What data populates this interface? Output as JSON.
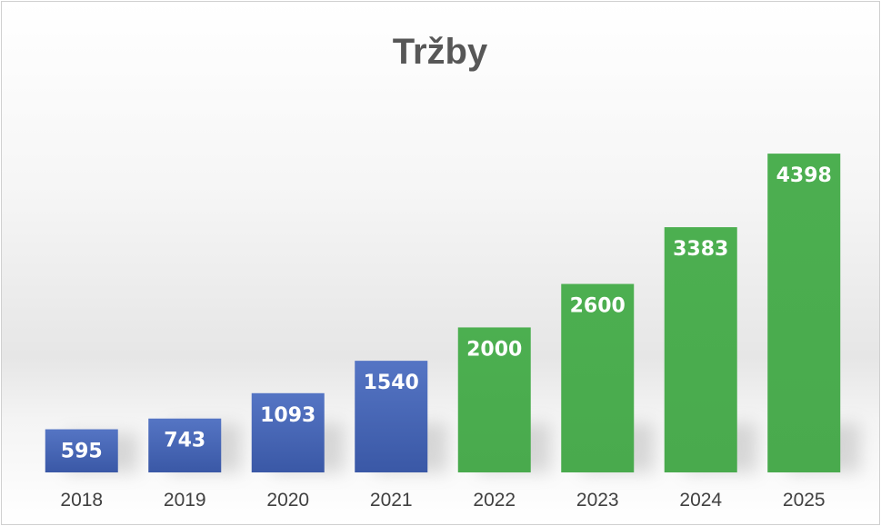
{
  "chart_data": {
    "type": "bar",
    "title": "Tržby",
    "xlabel": "",
    "ylabel": "",
    "categories": [
      "2018",
      "2019",
      "2020",
      "2021",
      "2022",
      "2023",
      "2024",
      "2025"
    ],
    "values": [
      595,
      743,
      1093,
      1540,
      2000,
      2600,
      3383,
      4398
    ],
    "bar_colors": [
      "#4566b5",
      "#4566b5",
      "#4566b5",
      "#4566b5",
      "#4caf50",
      "#4caf50",
      "#4caf50",
      "#4caf50"
    ],
    "data_labels": true,
    "grid": false,
    "legend": "none",
    "ylim": [
      0,
      4700
    ]
  }
}
